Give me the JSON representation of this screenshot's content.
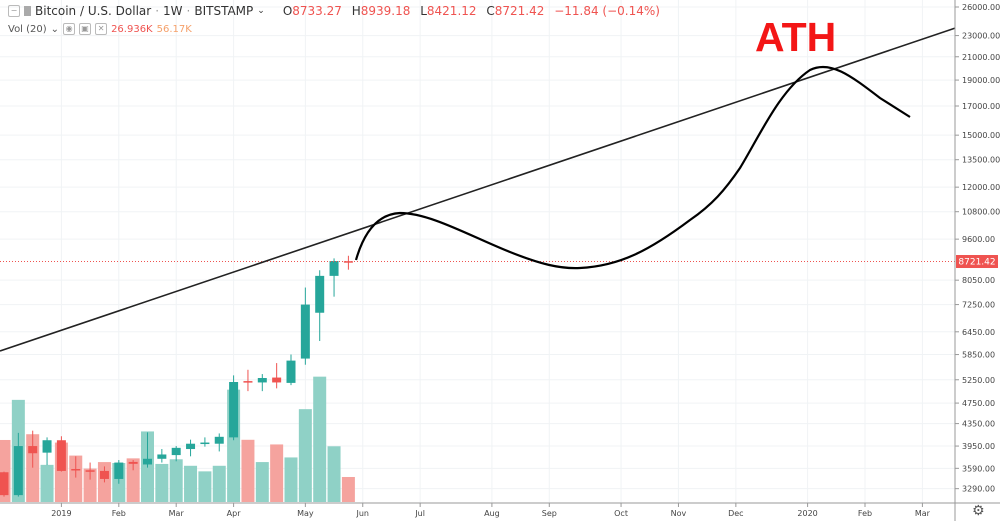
{
  "header": {
    "symbol": "Bitcoin / U.S. Dollar",
    "interval": "1W",
    "exchange": "BITSTAMP",
    "open_label": "O",
    "open": "8733.27",
    "high_label": "H",
    "high": "8939.18",
    "low_label": "L",
    "low": "8421.12",
    "close_label": "C",
    "close": "8721.42",
    "change": "−11.84 (−0.14%)"
  },
  "volume_legend": {
    "label": "Vol (20)",
    "value": "26.936K",
    "ma": "56.17K"
  },
  "annotation": {
    "text": "ATH"
  },
  "colors": {
    "up": "#26a69a",
    "down": "#ef5350",
    "vol_up": "#8fd1c6",
    "vol_down": "#f5a39e",
    "annotation": "#f31616",
    "last_price": "#ef5350"
  },
  "chart_data": {
    "type": "candlestick",
    "scale": "log",
    "grid": true,
    "ylim": [
      3150,
      26500
    ],
    "y_ticks": [
      "26000.00",
      "23000.00",
      "21000.00",
      "19000.00",
      "17000.00",
      "15000.00",
      "13500.00",
      "12000.00",
      "10800.00",
      "9600.00",
      "8050.00",
      "7250.00",
      "6450.00",
      "5850.00",
      "5250.00",
      "4750.00",
      "4350.00",
      "3950.00",
      "3590.00",
      "3290.00"
    ],
    "x_ticks": [
      {
        "label": "2019",
        "date": "2019-01-07"
      },
      {
        "label": "Feb",
        "date": "2019-02-04"
      },
      {
        "label": "Mar",
        "date": "2019-03-04"
      },
      {
        "label": "Apr",
        "date": "2019-04-01"
      },
      {
        "label": "May",
        "date": "2019-05-06"
      },
      {
        "label": "Jun",
        "date": "2019-06-03"
      },
      {
        "label": "Jul",
        "date": "2019-07-01"
      },
      {
        "label": "Aug",
        "date": "2019-08-05"
      },
      {
        "label": "Sep",
        "date": "2019-09-02"
      },
      {
        "label": "Oct",
        "date": "2019-10-07"
      },
      {
        "label": "Nov",
        "date": "2019-11-04"
      },
      {
        "label": "Dec",
        "date": "2019-12-02"
      },
      {
        "label": "2020",
        "date": "2020-01-06"
      },
      {
        "label": "Feb",
        "date": "2020-02-03"
      },
      {
        "label": "Mar",
        "date": "2020-03-02"
      }
    ],
    "last_price": "8721.42",
    "candles": [
      {
        "date": "2018-12-10",
        "o": 3530,
        "h": 3540,
        "l": 3180,
        "c": 3200,
        "v": 66.8
      },
      {
        "date": "2018-12-17",
        "o": 3200,
        "h": 4180,
        "l": 3180,
        "c": 3950,
        "v": 110
      },
      {
        "date": "2018-12-24",
        "o": 3950,
        "h": 4220,
        "l": 3600,
        "c": 3830,
        "v": 73
      },
      {
        "date": "2018-12-31",
        "o": 3840,
        "h": 4100,
        "l": 3640,
        "c": 4050,
        "v": 40
      },
      {
        "date": "2019-01-07",
        "o": 4050,
        "h": 4120,
        "l": 3540,
        "c": 3550,
        "v": 64
      },
      {
        "date": "2019-01-14",
        "o": 3580,
        "h": 3780,
        "l": 3450,
        "c": 3560,
        "v": 50
      },
      {
        "date": "2019-01-21",
        "o": 3560,
        "h": 3680,
        "l": 3420,
        "c": 3540,
        "v": 36
      },
      {
        "date": "2019-01-28",
        "o": 3550,
        "h": 3620,
        "l": 3380,
        "c": 3430,
        "v": 43
      },
      {
        "date": "2019-02-04",
        "o": 3430,
        "h": 3720,
        "l": 3360,
        "c": 3680,
        "v": 42
      },
      {
        "date": "2019-02-11",
        "o": 3690,
        "h": 3720,
        "l": 3560,
        "c": 3660,
        "v": 47
      },
      {
        "date": "2019-02-18",
        "o": 3650,
        "h": 4190,
        "l": 3600,
        "c": 3740,
        "v": 76
      },
      {
        "date": "2019-02-25",
        "o": 3740,
        "h": 3900,
        "l": 3680,
        "c": 3810,
        "v": 41
      },
      {
        "date": "2019-03-04",
        "o": 3800,
        "h": 3950,
        "l": 3700,
        "c": 3920,
        "v": 46
      },
      {
        "date": "2019-03-11",
        "o": 3900,
        "h": 4060,
        "l": 3780,
        "c": 3990,
        "v": 39
      },
      {
        "date": "2019-03-18",
        "o": 3990,
        "h": 4100,
        "l": 3940,
        "c": 4010,
        "v": 33
      },
      {
        "date": "2019-03-25",
        "o": 3990,
        "h": 4170,
        "l": 3860,
        "c": 4110,
        "v": 39
      },
      {
        "date": "2019-04-01",
        "o": 4100,
        "h": 5350,
        "l": 4050,
        "c": 5200,
        "v": 121
      },
      {
        "date": "2019-04-08",
        "o": 5220,
        "h": 5480,
        "l": 5000,
        "c": 5190,
        "v": 67
      },
      {
        "date": "2019-04-15",
        "o": 5190,
        "h": 5380,
        "l": 5000,
        "c": 5290,
        "v": 43
      },
      {
        "date": "2019-04-22",
        "o": 5300,
        "h": 5640,
        "l": 5060,
        "c": 5190,
        "v": 62
      },
      {
        "date": "2019-04-29",
        "o": 5180,
        "h": 5850,
        "l": 5130,
        "c": 5700,
        "v": 48
      },
      {
        "date": "2019-05-06",
        "o": 5750,
        "h": 7800,
        "l": 5600,
        "c": 7250,
        "v": 100
      },
      {
        "date": "2019-05-13",
        "o": 7000,
        "h": 8400,
        "l": 6200,
        "c": 8200,
        "v": 135
      },
      {
        "date": "2019-05-20",
        "o": 8200,
        "h": 8840,
        "l": 7500,
        "c": 8740,
        "v": 60
      },
      {
        "date": "2019-05-27",
        "o": 8733.27,
        "h": 8939.18,
        "l": 8421.12,
        "c": 8721.42,
        "v": 26.936
      }
    ]
  }
}
